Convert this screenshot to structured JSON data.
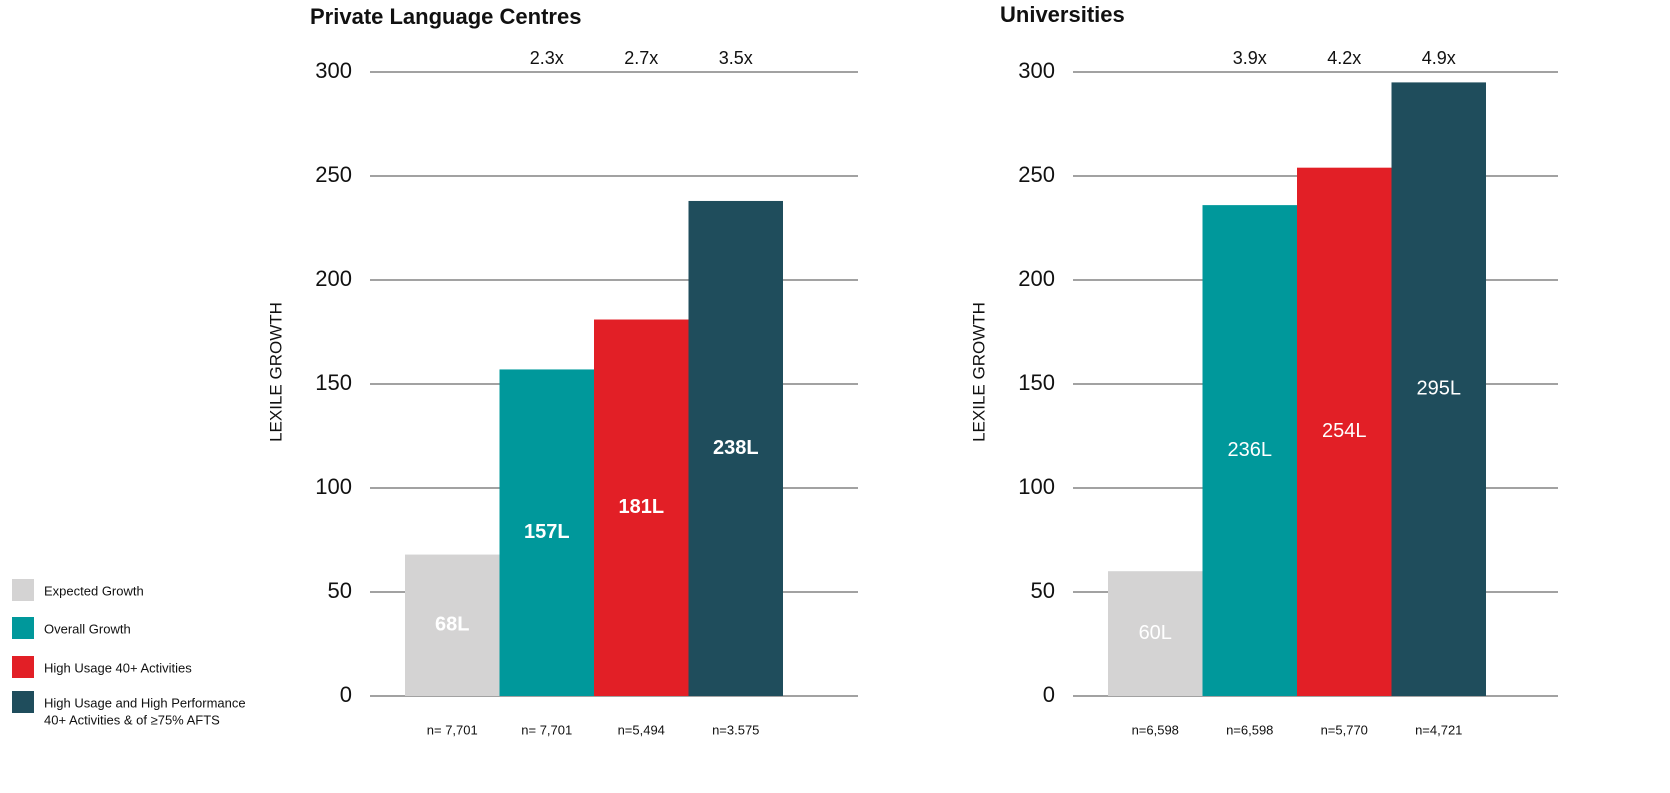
{
  "chart_data": [
    {
      "type": "bar",
      "title": "Private Language Centres",
      "y_label": "LEXILE GROWTH",
      "categories": [
        "n= 7,701",
        "n= 7,701",
        "n=5,494",
        "n=3.575"
      ],
      "values": [
        68,
        157,
        181,
        238
      ],
      "value_labels": [
        "68L",
        "157L",
        "181L",
        "238L"
      ],
      "label_bold": true,
      "colors": [
        "#d4d3d3",
        "#00989b",
        "#e21f26",
        "#1f4d5c"
      ],
      "annotations": [
        "2.3x",
        "2.7x",
        "3.5x"
      ],
      "ylim": [
        0,
        300
      ],
      "yticks": [
        0,
        50,
        100,
        150,
        200,
        250,
        300
      ],
      "grid": true
    },
    {
      "type": "bar",
      "title": "Universities",
      "y_label": "LEXILE GROWTH",
      "categories": [
        "n=6,598",
        "n=6,598",
        "n=5,770",
        "n=4,721"
      ],
      "values": [
        60,
        236,
        254,
        295
      ],
      "value_labels": [
        "60L",
        "236L",
        "254L",
        "295L"
      ],
      "label_bold": false,
      "colors": [
        "#d4d3d3",
        "#00989b",
        "#e21f26",
        "#1f4d5c"
      ],
      "annotations": [
        "3.9x",
        "4.2x",
        "4.9x"
      ],
      "ylim": [
        0,
        300
      ],
      "yticks": [
        0,
        50,
        100,
        150,
        200,
        250,
        300
      ],
      "grid": true
    }
  ],
  "legend": [
    {
      "color": "#d4d3d3",
      "lines": [
        "Expected Growth"
      ]
    },
    {
      "color": "#00989b",
      "lines": [
        "Overall Growth"
      ]
    },
    {
      "color": "#e21f26",
      "lines": [
        "High Usage 40+ Activities"
      ]
    },
    {
      "color": "#1f4d5c",
      "lines": [
        "High Usage and High Performance",
        "40+ Activities & of ≥75% AFTS"
      ]
    }
  ]
}
